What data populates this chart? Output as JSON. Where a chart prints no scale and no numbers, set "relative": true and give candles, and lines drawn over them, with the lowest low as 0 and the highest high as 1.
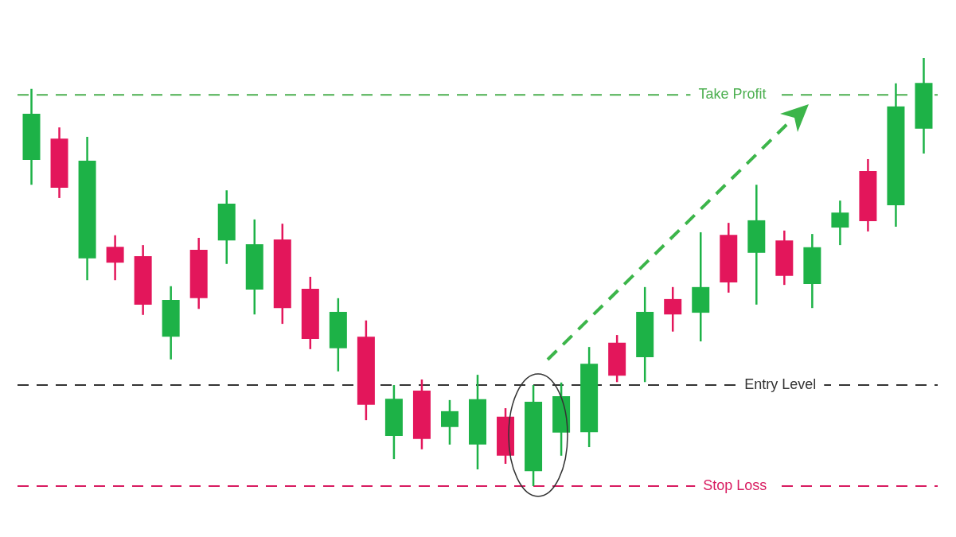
{
  "chart_data": {
    "type": "candlestick",
    "relative": true,
    "categories": [
      null,
      null,
      null,
      null,
      null,
      null,
      null,
      null,
      null,
      null,
      null,
      null,
      null,
      null,
      null,
      null,
      null,
      null,
      null,
      null,
      null,
      null,
      null,
      null,
      null,
      null,
      null,
      null,
      null,
      null,
      null,
      null,
      null
    ],
    "ohlc": [
      [
        0.762,
        0.928,
        0.704,
        0.87
      ],
      [
        0.812,
        0.838,
        0.673,
        0.697
      ],
      [
        0.532,
        0.816,
        0.481,
        0.76
      ],
      [
        0.559,
        0.586,
        0.481,
        0.522
      ],
      [
        0.537,
        0.563,
        0.4,
        0.424
      ],
      [
        0.349,
        0.467,
        0.296,
        0.435
      ],
      [
        0.552,
        0.58,
        0.414,
        0.439
      ],
      [
        0.574,
        0.691,
        0.519,
        0.66
      ],
      [
        0.459,
        0.623,
        0.401,
        0.565
      ],
      [
        0.576,
        0.613,
        0.379,
        0.416
      ],
      [
        0.461,
        0.489,
        0.32,
        0.344
      ],
      [
        0.322,
        0.439,
        0.268,
        0.407
      ],
      [
        0.349,
        0.387,
        0.154,
        0.19
      ],
      [
        0.117,
        0.236,
        0.063,
        0.204
      ],
      [
        0.223,
        0.249,
        0.086,
        0.11
      ],
      [
        0.138,
        0.201,
        0.097,
        0.175
      ],
      [
        0.097,
        0.26,
        0.039,
        0.203
      ],
      [
        0.162,
        0.182,
        0.052,
        0.071
      ],
      [
        0.035,
        0.236,
        0,
        0.197
      ],
      [
        0.125,
        0.242,
        0.071,
        0.21
      ],
      [
        0.126,
        0.325,
        0.091,
        0.286
      ],
      [
        0.335,
        0.353,
        0.243,
        0.258
      ],
      [
        0.301,
        0.465,
        0.243,
        0.407
      ],
      [
        0.437,
        0.465,
        0.361,
        0.401
      ],
      [
        0.405,
        0.593,
        0.338,
        0.465
      ],
      [
        0.587,
        0.615,
        0.452,
        0.476
      ],
      [
        0.545,
        0.704,
        0.424,
        0.621
      ],
      [
        0.574,
        0.597,
        0.47,
        0.491
      ],
      [
        0.472,
        0.589,
        0.416,
        0.558
      ],
      [
        0.604,
        0.667,
        0.563,
        0.639
      ],
      [
        0.736,
        0.764,
        0.595,
        0.619
      ],
      [
        0.656,
        0.941,
        0.606,
        0.887
      ],
      [
        0.835,
        1,
        0.777,
        0.942
      ]
    ],
    "colors": [
      "#1db247",
      "#e3165b",
      "#1db247",
      "#e3165b",
      "#e3165b",
      "#1db247",
      "#e3165b",
      "#1db247",
      "#1db247",
      "#e3165b",
      "#e3165b",
      "#1db247",
      "#e3165b",
      "#1db247",
      "#e3165b",
      "#1db247",
      "#1db247",
      "#e3165b",
      "#1db247",
      "#1db247",
      "#1db247",
      "#e3165b",
      "#1db247",
      "#e3165b",
      "#1db247",
      "#e3165b",
      "#1db247",
      "#e3165b",
      "#1db247",
      "#1db247",
      "#e3165b",
      "#1db247",
      "#1db247"
    ],
    "ref_lines": [
      {
        "axis": "y",
        "value": 0.914,
        "label": "Take Profit",
        "color": "#4caf50",
        "line_style": "dashed"
      },
      {
        "axis": "y",
        "value": 0.236,
        "label": "Entry Level",
        "color": "#333333",
        "line_style": "dashed"
      },
      {
        "axis": "y",
        "value": 0,
        "label": "Stop Loss",
        "color": "#d81b60",
        "line_style": "dashed"
      }
    ]
  }
}
